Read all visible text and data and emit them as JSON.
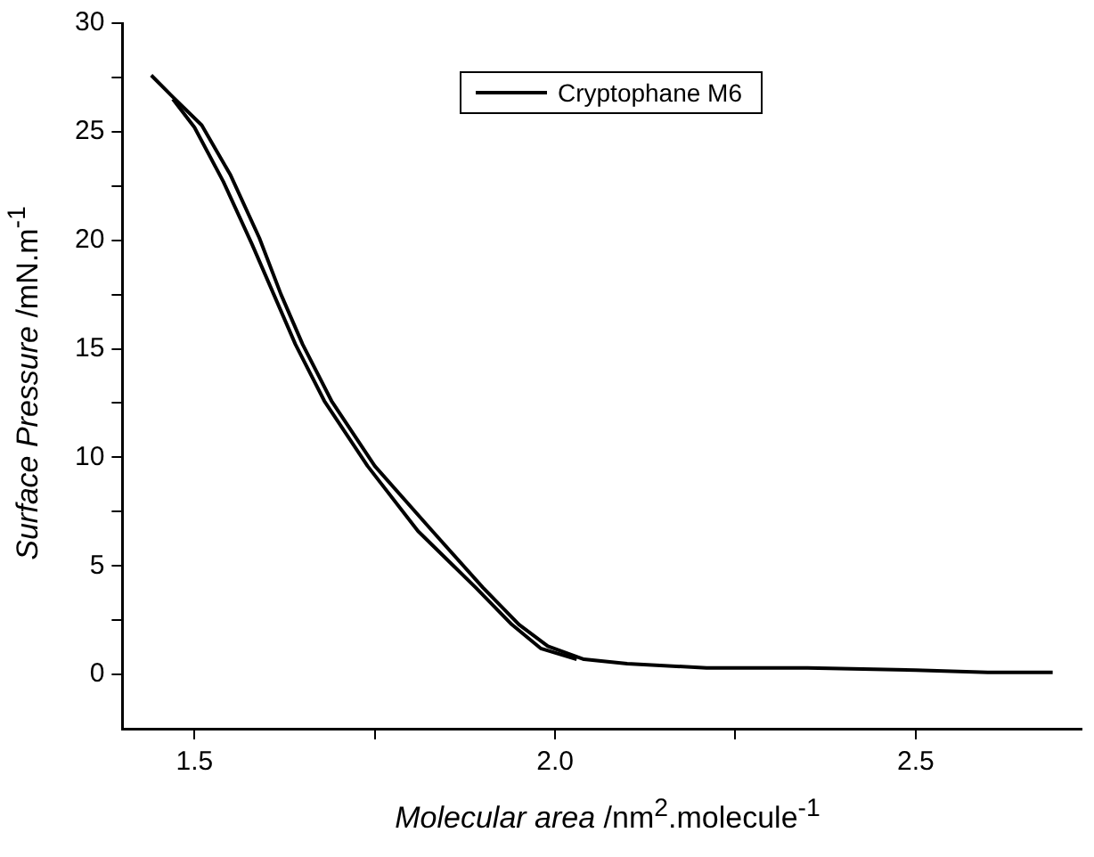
{
  "chart_data": {
    "type": "line",
    "xlabel": "Molecular area /nm$^{2}$.molecule$^{-1}$",
    "ylabel": "Surface Pressure /mN.m$^{-1}$",
    "legend": "top right",
    "xlim": [
      1.4,
      2.73
    ],
    "ylim": [
      -2.5,
      30
    ],
    "xticks": [
      1.5,
      {
        "value": 1.75,
        "label": null
      },
      {
        "value": 2,
        "label": "2.0"
      },
      {
        "value": 2.25,
        "label": null
      },
      2.5
    ],
    "yticks": [
      0,
      {
        "value": 2.5,
        "label": null
      },
      5,
      {
        "value": 7.5,
        "label": null
      },
      10,
      {
        "value": 12.5,
        "label": null
      },
      15,
      {
        "value": 17.5,
        "label": null
      },
      20,
      {
        "value": 22.5,
        "label": null
      },
      25,
      {
        "value": 27.5,
        "label": null
      },
      30
    ],
    "series": [
      {
        "name": "Cryptophane M6",
        "color": "#000000",
        "x": [
          1.44,
          1.47,
          1.51,
          1.55,
          1.59,
          1.62,
          1.65,
          1.69,
          1.75,
          1.83,
          1.9,
          1.95,
          1.99,
          2.04,
          2.1,
          2.21,
          2.35,
          2.5,
          2.6,
          2.69
        ],
        "values": [
          27.6,
          26.6,
          25.3,
          23,
          20.1,
          17.5,
          15.2,
          12.6,
          9.6,
          6.6,
          4,
          2.3,
          1.3,
          0.7,
          0.5,
          0.3,
          0.3,
          0.2,
          0.1,
          0.1
        ]
      },
      {
        "color": "#000000",
        "x": [
          1.47,
          1.5,
          1.54,
          1.58,
          1.61,
          1.64,
          1.68,
          1.74,
          1.81,
          1.89,
          1.94,
          1.98,
          2.03
        ],
        "values": [
          26.5,
          25.2,
          22.7,
          19.8,
          17.5,
          15.2,
          12.6,
          9.6,
          6.6,
          4,
          2.3,
          1.2,
          0.7
        ]
      }
    ]
  }
}
